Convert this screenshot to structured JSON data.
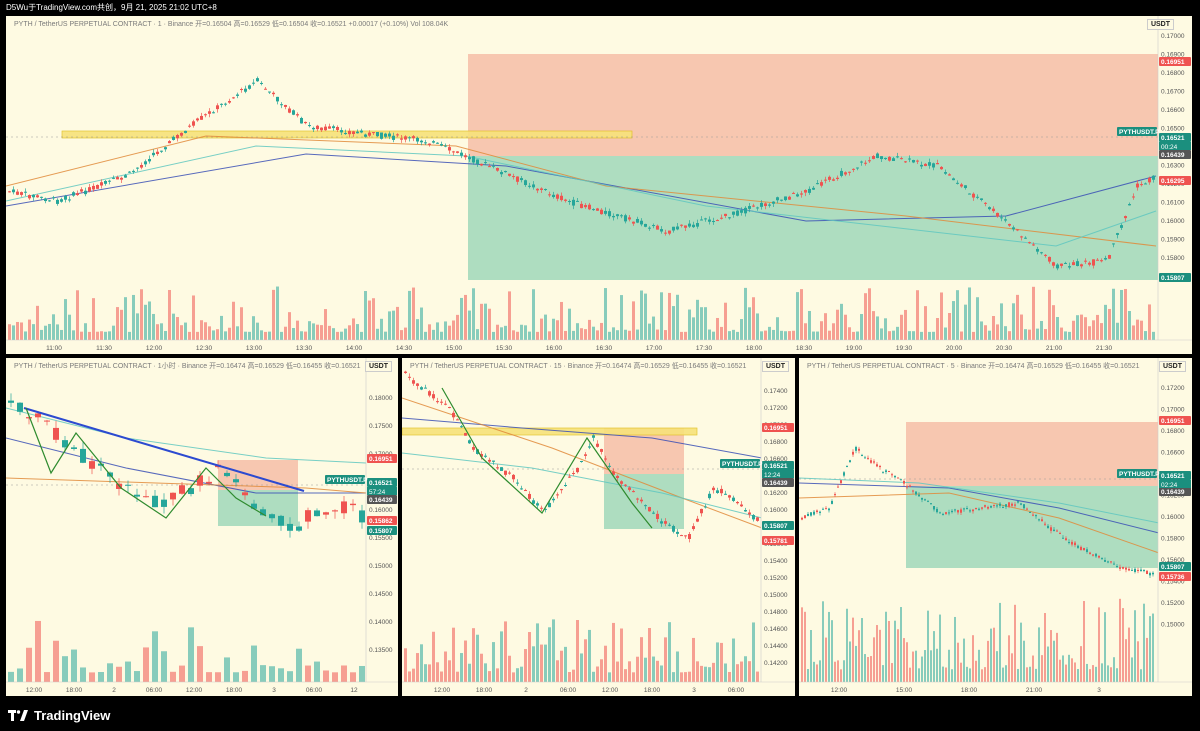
{
  "header": {
    "text": "D5Wu于TradingView.com共创，9月 21, 2025 21:02 UTC+8"
  },
  "footer": {
    "brand": "TradingView",
    "logo_icon": "tradingview-logo-icon"
  },
  "colors": {
    "bg": "#fefae2",
    "up": "#26a69a",
    "down": "#ef5350",
    "profit_zone": "#9ad6b8",
    "loss_zone": "#f6bda7",
    "key_level": "#f7e27a"
  },
  "panes": [
    {
      "id": "main-1m",
      "legend": "PYTH / TetherUS PERPETUAL CONTRACT · 1 · Binance  开=0.16504  高=0.16529  低=0.16504  收=0.16521  +0.00017 (+0.10%)  Vol 108.04K",
      "unit": "USDT",
      "symbol_tag": "PYTHUSDT.P",
      "countdown": "00:24",
      "price_labels": [
        {
          "text": "0.16951",
          "color": "#ef5350"
        },
        {
          "text": "0.16521",
          "color": "#1b8f7e"
        },
        {
          "text": "0.16439",
          "color": "#555555"
        },
        {
          "text": "0.16295",
          "color": "#ef5350"
        },
        {
          "text": "0.15807",
          "color": "#1b8f7e"
        }
      ],
      "price_ticks": [
        "0.17000",
        "0.16900",
        "0.16800",
        "0.16700",
        "0.16600",
        "0.16500",
        "0.16400",
        "0.16300",
        "0.16200",
        "0.16100",
        "0.16000",
        "0.15900",
        "0.15800",
        "0.15600"
      ],
      "time_ticks": [
        "11:00",
        "11:30",
        "12:00",
        "12:30",
        "13:00",
        "13:30",
        "14:00",
        "14:30",
        "15:00",
        "15:30",
        "16:00",
        "16:30",
        "17:00",
        "17:30",
        "18:00",
        "18:30",
        "19:00",
        "19:30",
        "20:00",
        "20:30",
        "21:00",
        "21:30"
      ]
    },
    {
      "id": "pane-1h",
      "legend": "PYTH / TetherUS PERPETUAL CONTRACT · 1小时 · Binance  开=0.16474  高=0.16529  低=0.16455  收=0.16521",
      "unit": "USDT",
      "symbol_tag": "PYTHUSDT.P",
      "countdown": "57:24",
      "price_labels": [
        {
          "text": "0.16951",
          "color": "#ef5350"
        },
        {
          "text": "0.16521",
          "color": "#1b8f7e"
        },
        {
          "text": "0.16439",
          "color": "#555555"
        },
        {
          "text": "0.15862",
          "color": "#ef5350"
        },
        {
          "text": "0.15807",
          "color": "#1b8f7e"
        }
      ],
      "price_ticks": [
        "0.18000",
        "0.17500",
        "0.17000",
        "0.16500",
        "0.16000",
        "0.15500",
        "0.15000",
        "0.14500",
        "0.14000",
        "0.13500"
      ],
      "time_ticks": [
        "12:00",
        "18:00",
        "2",
        "06:00",
        "12:00",
        "18:00",
        "3",
        "06:00",
        "12"
      ]
    },
    {
      "id": "pane-15m",
      "legend": "PYTH / TetherUS PERPETUAL CONTRACT · 15 · Binance  开=0.16474  高=0.16529  低=0.16455  收=0.16521",
      "unit": "USDT",
      "symbol_tag": "PYTHUSDT.P",
      "countdown": "12:24",
      "price_labels": [
        {
          "text": "0.16951",
          "color": "#ef5350"
        },
        {
          "text": "0.16521",
          "color": "#1b8f7e"
        },
        {
          "text": "0.16439",
          "color": "#555555"
        },
        {
          "text": "0.15807",
          "color": "#1b8f7e"
        },
        {
          "text": "0.15781",
          "color": "#ef5350"
        }
      ],
      "price_ticks": [
        "0.17400",
        "0.17200",
        "0.17000",
        "0.16800",
        "0.16600",
        "0.16400",
        "0.16200",
        "0.16000",
        "0.15800",
        "0.15600",
        "0.15400",
        "0.15200",
        "0.15000",
        "0.14800",
        "0.14600",
        "0.14400",
        "0.14200"
      ],
      "time_ticks": [
        "12:00",
        "18:00",
        "2",
        "06:00",
        "12:00",
        "18:00",
        "3",
        "06:00",
        "12:00"
      ]
    },
    {
      "id": "pane-5m",
      "legend": "PYTH / TetherUS PERPETUAL CONTRACT · 5 · Binance  开=0.16474  高=0.16529  低=0.16455  收=0.16521",
      "unit": "USDT",
      "symbol_tag": "PYTHUSDT.P",
      "countdown": "02:24",
      "price_labels": [
        {
          "text": "0.16951",
          "color": "#ef5350"
        },
        {
          "text": "0.16521",
          "color": "#1b8f7e"
        },
        {
          "text": "0.16439",
          "color": "#555555"
        },
        {
          "text": "0.15807",
          "color": "#1b8f7e"
        },
        {
          "text": "0.15736",
          "color": "#ef5350"
        }
      ],
      "price_ticks": [
        "0.17200",
        "0.17000",
        "0.16800",
        "0.16600",
        "0.16400",
        "0.16200",
        "0.16000",
        "0.15800",
        "0.15600",
        "0.15400",
        "0.15200",
        "0.15000"
      ],
      "time_ticks": [
        "12:00",
        "15:00",
        "18:00",
        "21:00",
        "3"
      ]
    }
  ]
}
